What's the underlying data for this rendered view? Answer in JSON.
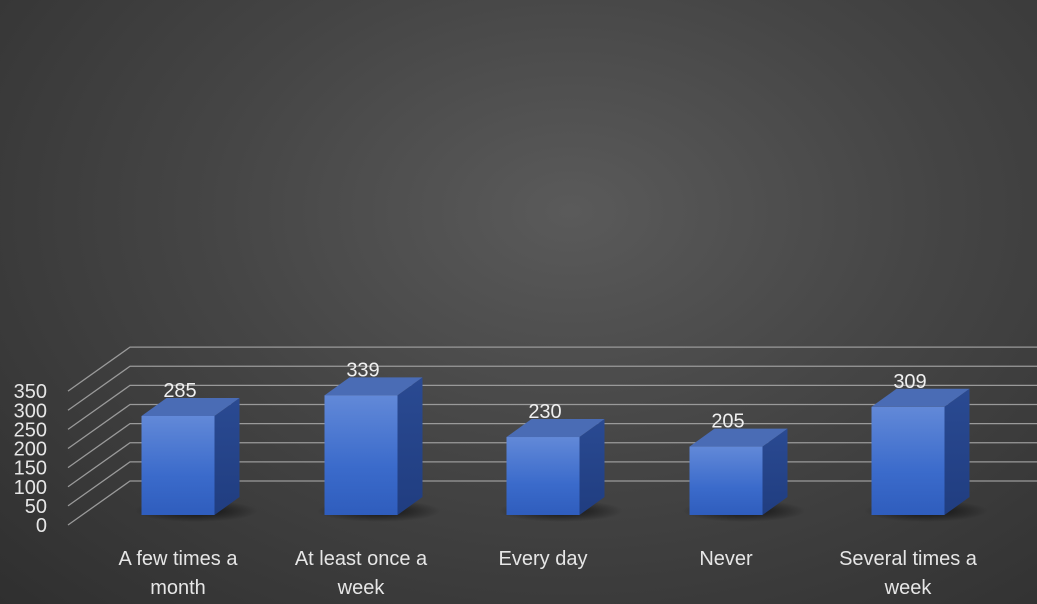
{
  "chart_data": {
    "type": "bar",
    "style": "3d-column",
    "categories": [
      [
        "A few times a",
        "month"
      ],
      [
        "At least once a",
        "week"
      ],
      [
        "Every day"
      ],
      [
        "Never"
      ],
      [
        "Several times a",
        "week"
      ]
    ],
    "values": [
      285,
      339,
      230,
      205,
      309
    ],
    "ylim": [
      0,
      350
    ],
    "yticks": [
      0,
      50,
      100,
      150,
      200,
      250,
      300,
      350
    ],
    "grid": true,
    "data_labels": true,
    "legend": "none",
    "colors": {
      "bar_front_top": "#5f86d6",
      "bar_front_bottom": "#2f5fbf",
      "bar_side": "#23438c",
      "bar_top": "#4a6cb5",
      "background": "#3d3d3d",
      "text": "#e6e6e6"
    }
  }
}
